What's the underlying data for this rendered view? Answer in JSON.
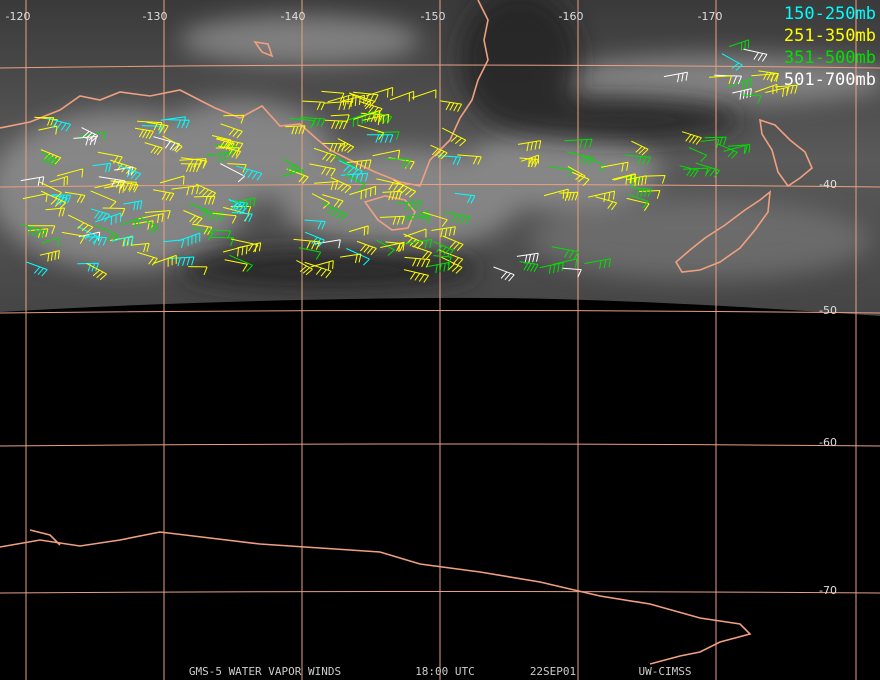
{
  "longitude_labels": [
    "-120",
    "-130",
    "-140",
    "-150",
    "-160",
    "-170"
  ],
  "latitude_labels": [
    "-40",
    "-50",
    "-60",
    "-70"
  ],
  "legend": [
    {
      "label": "150-250mb",
      "color": "#00ffff"
    },
    {
      "label": "251-350mb",
      "color": "#ffff00"
    },
    {
      "label": "351-500mb",
      "color": "#00e000"
    },
    {
      "label": "501-700mb",
      "color": "#ffffff"
    }
  ],
  "footer": [
    "GMS-5 WATER VAPOR WINDS",
    "18:00 UTC",
    "22SEP01",
    "UW-CIMSS"
  ]
}
